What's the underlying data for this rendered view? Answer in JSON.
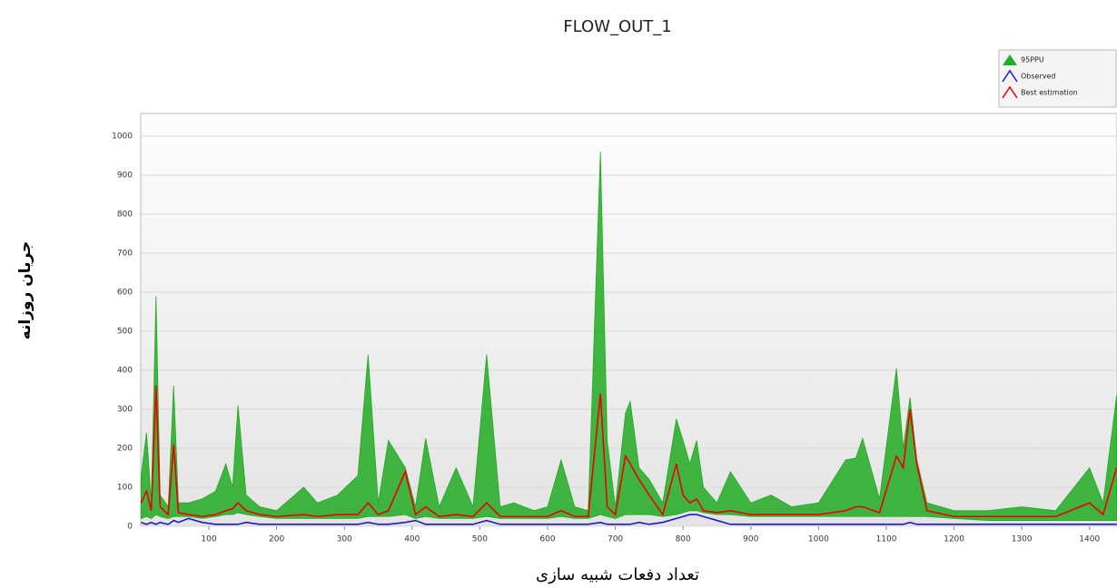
{
  "chart_data": {
    "type": "line",
    "title": "FLOW_OUT_1",
    "y_label": "جریان روزانه",
    "x_label": "تعداد دفعات شبیه سازی",
    "x": [
      0,
      8,
      15,
      22,
      28,
      40,
      48,
      55,
      70,
      90,
      110,
      125,
      135,
      143,
      155,
      175,
      200,
      240,
      260,
      290,
      320,
      335,
      350,
      365,
      390,
      405,
      420,
      440,
      465,
      490,
      510,
      530,
      550,
      580,
      600,
      620,
      640,
      660,
      678,
      688,
      700,
      715,
      722,
      735,
      750,
      770,
      790,
      800,
      810,
      820,
      830,
      850,
      870,
      900,
      930,
      960,
      1000,
      1040,
      1055,
      1065,
      1090,
      1115,
      1125,
      1135,
      1145,
      1160,
      1200,
      1250,
      1300,
      1350,
      1400,
      1420,
      1440
    ],
    "series": [
      {
        "name": "95PPU",
        "color": "#22aa22",
        "upper": [
          130,
          240,
          60,
          590,
          80,
          50,
          360,
          60,
          60,
          70,
          90,
          160,
          100,
          310,
          80,
          50,
          40,
          100,
          60,
          80,
          130,
          440,
          60,
          220,
          150,
          50,
          225,
          50,
          150,
          50,
          440,
          50,
          60,
          40,
          50,
          170,
          50,
          40,
          960,
          220,
          50,
          290,
          320,
          150,
          120,
          60,
          275,
          220,
          160,
          220,
          100,
          60,
          140,
          60,
          80,
          50,
          60,
          170,
          175,
          225,
          70,
          405,
          200,
          330,
          170,
          60,
          40,
          40,
          50,
          40,
          150,
          60,
          335
        ],
        "lower": [
          20,
          25,
          20,
          30,
          25,
          20,
          25,
          25,
          25,
          20,
          25,
          30,
          30,
          35,
          30,
          25,
          20,
          20,
          20,
          20,
          20,
          25,
          25,
          25,
          30,
          20,
          25,
          20,
          20,
          20,
          25,
          20,
          20,
          20,
          20,
          25,
          20,
          20,
          30,
          25,
          20,
          30,
          30,
          30,
          30,
          25,
          30,
          35,
          40,
          40,
          35,
          30,
          30,
          25,
          25,
          25,
          25,
          25,
          25,
          25,
          25,
          25,
          25,
          25,
          25,
          25,
          20,
          15,
          15,
          15,
          15,
          15,
          15
        ]
      },
      {
        "name": "Observed",
        "color": "#1a1acc",
        "values": [
          10,
          5,
          10,
          5,
          10,
          5,
          15,
          10,
          20,
          10,
          5,
          5,
          5,
          5,
          10,
          5,
          5,
          5,
          5,
          5,
          5,
          10,
          5,
          5,
          10,
          15,
          5,
          5,
          5,
          5,
          15,
          5,
          5,
          5,
          5,
          5,
          5,
          5,
          10,
          5,
          5,
          5,
          5,
          10,
          5,
          10,
          20,
          25,
          30,
          30,
          25,
          15,
          5,
          5,
          5,
          5,
          5,
          5,
          5,
          5,
          5,
          5,
          5,
          10,
          5,
          5,
          5,
          5,
          5,
          5,
          5,
          5,
          5
        ]
      },
      {
        "name": "Best estimation",
        "color": "#ee0000",
        "values": [
          60,
          90,
          40,
          360,
          50,
          30,
          210,
          35,
          30,
          25,
          30,
          40,
          45,
          60,
          40,
          30,
          25,
          30,
          25,
          30,
          30,
          60,
          30,
          40,
          140,
          30,
          50,
          25,
          30,
          25,
          60,
          25,
          25,
          25,
          25,
          40,
          25,
          25,
          340,
          50,
          30,
          180,
          160,
          120,
          80,
          30,
          160,
          80,
          60,
          70,
          40,
          35,
          40,
          30,
          30,
          30,
          30,
          40,
          50,
          50,
          35,
          180,
          150,
          300,
          160,
          40,
          25,
          25,
          25,
          25,
          60,
          30,
          150
        ]
      }
    ],
    "xlim": [
      0,
      1440
    ],
    "ylim": [
      0,
      1058
    ],
    "xticks": [
      100,
      200,
      300,
      400,
      500,
      600,
      700,
      800,
      900,
      1000,
      1100,
      1200,
      1300,
      1400
    ],
    "yticks": [
      0,
      100,
      200,
      300,
      400,
      500,
      600,
      700,
      800,
      900,
      1000
    ],
    "grid": true,
    "legend": "top-right"
  }
}
